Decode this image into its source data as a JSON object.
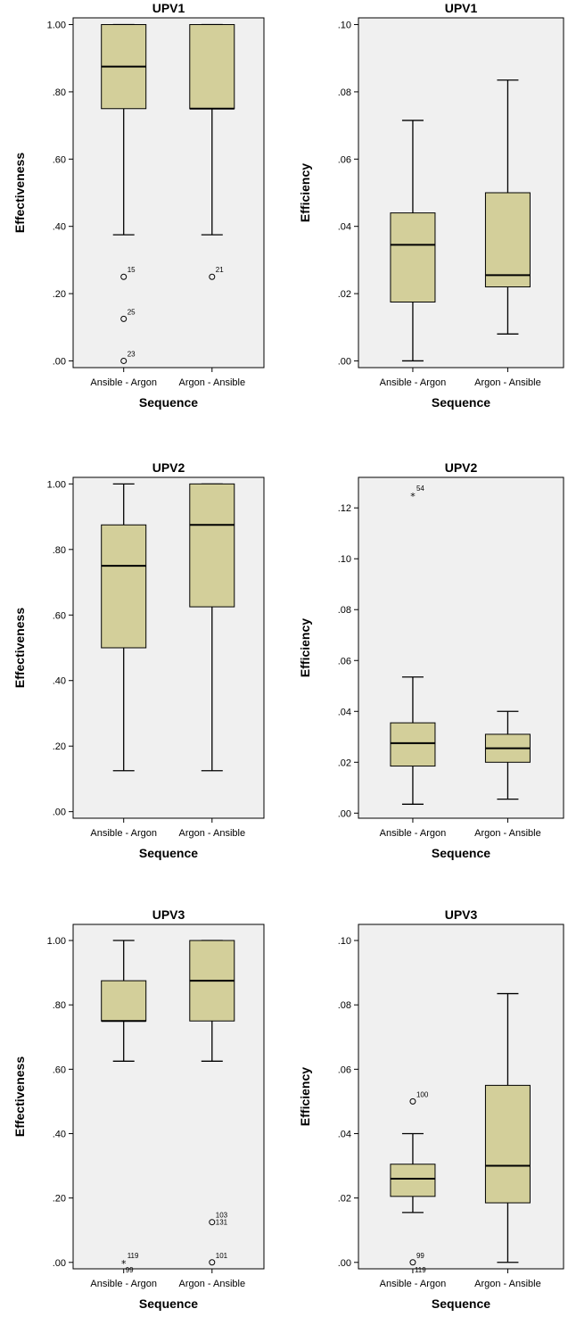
{
  "colors": {
    "box_fill": "#d3cf9a",
    "plot_bg": "#f0f0f0",
    "stroke": "#000000"
  },
  "chart_data": [
    {
      "type": "boxplot",
      "title": "UPV1",
      "xlabel": "Sequence",
      "ylabel": "Effectiveness",
      "categories": [
        "Ansible - Argon",
        "Argon - Ansible"
      ],
      "ylim": [
        -0.02,
        1.02
      ],
      "yticks": [
        0,
        0.2,
        0.4,
        0.6,
        0.8,
        1.0
      ],
      "ytick_labels": [
        ".00",
        ".20",
        ".40",
        ".60",
        ".80",
        "1.00"
      ],
      "grid": false,
      "boxes": [
        {
          "whisker_low": 0.375,
          "q1": 0.75,
          "median": 0.875,
          "q3": 1.0,
          "whisker_high": 1.0,
          "outliers": [
            {
              "value": 0.25,
              "label": "15",
              "marker": "circle"
            },
            {
              "value": 0.125,
              "label": "25",
              "marker": "circle"
            },
            {
              "value": 0.0,
              "label": "23",
              "marker": "circle"
            }
          ]
        },
        {
          "whisker_low": 0.375,
          "q1": 0.75,
          "median": 0.75,
          "q3": 1.0,
          "whisker_high": 1.0,
          "outliers": [
            {
              "value": 0.25,
              "label": "21",
              "marker": "circle"
            }
          ]
        }
      ]
    },
    {
      "type": "boxplot",
      "title": "UPV1",
      "xlabel": "Sequence",
      "ylabel": "Efficiency",
      "categories": [
        "Ansible - Argon",
        "Argon - Ansible"
      ],
      "ylim": [
        -0.002,
        0.102
      ],
      "yticks": [
        0,
        0.02,
        0.04,
        0.06,
        0.08,
        0.1
      ],
      "ytick_labels": [
        ".00",
        ".02",
        ".04",
        ".06",
        ".08",
        ".10"
      ],
      "grid": false,
      "boxes": [
        {
          "whisker_low": 0.0,
          "q1": 0.0175,
          "median": 0.0345,
          "q3": 0.044,
          "whisker_high": 0.0715,
          "outliers": []
        },
        {
          "whisker_low": 0.008,
          "q1": 0.022,
          "median": 0.0255,
          "q3": 0.05,
          "whisker_high": 0.0835,
          "outliers": []
        }
      ]
    },
    {
      "type": "boxplot",
      "title": "UPV2",
      "xlabel": "Sequence",
      "ylabel": "Effectiveness",
      "categories": [
        "Ansible - Argon",
        "Argon - Ansible"
      ],
      "ylim": [
        -0.02,
        1.02
      ],
      "yticks": [
        0,
        0.2,
        0.4,
        0.6,
        0.8,
        1.0
      ],
      "ytick_labels": [
        ".00",
        ".20",
        ".40",
        ".60",
        ".80",
        "1.00"
      ],
      "grid": false,
      "boxes": [
        {
          "whisker_low": 0.125,
          "q1": 0.5,
          "median": 0.75,
          "q3": 0.875,
          "whisker_high": 1.0,
          "outliers": []
        },
        {
          "whisker_low": 0.125,
          "q1": 0.625,
          "median": 0.875,
          "q3": 1.0,
          "whisker_high": 1.0,
          "outliers": []
        }
      ]
    },
    {
      "type": "boxplot",
      "title": "UPV2",
      "xlabel": "Sequence",
      "ylabel": "Efficiency",
      "categories": [
        "Ansible - Argon",
        "Argon - Ansible"
      ],
      "ylim": [
        -0.002,
        0.132
      ],
      "yticks": [
        0,
        0.02,
        0.04,
        0.06,
        0.08,
        0.1,
        0.12
      ],
      "ytick_labels": [
        ".00",
        ".02",
        ".04",
        ".06",
        ".08",
        ".10",
        ".12"
      ],
      "grid": false,
      "boxes": [
        {
          "whisker_low": 0.0035,
          "q1": 0.0185,
          "median": 0.0275,
          "q3": 0.0355,
          "whisker_high": 0.0535,
          "outliers": [
            {
              "value": 0.125,
              "label": "54",
              "marker": "star"
            }
          ]
        },
        {
          "whisker_low": 0.0055,
          "q1": 0.02,
          "median": 0.0255,
          "q3": 0.031,
          "whisker_high": 0.04,
          "outliers": []
        }
      ]
    },
    {
      "type": "boxplot",
      "title": "UPV3",
      "xlabel": "Sequence",
      "ylabel": "Effectiveness",
      "categories": [
        "Ansible - Argon",
        "Argon - Ansible"
      ],
      "ylim": [
        -0.02,
        1.05
      ],
      "yticks": [
        0,
        0.2,
        0.4,
        0.6,
        0.8,
        1.0
      ],
      "ytick_labels": [
        ".00",
        ".20",
        ".40",
        ".60",
        ".80",
        "1.00"
      ],
      "grid": false,
      "boxes": [
        {
          "whisker_low": 0.625,
          "q1": 0.75,
          "median": 0.75,
          "q3": 0.875,
          "whisker_high": 1.0,
          "outliers": [
            {
              "value": 0.0,
              "label": "119",
              "marker": "star",
              "label_pos": "above"
            },
            {
              "value": 0.0,
              "label": "99",
              "marker": "none",
              "label_pos": "below"
            }
          ]
        },
        {
          "whisker_low": 0.625,
          "q1": 0.75,
          "median": 0.875,
          "q3": 1.0,
          "whisker_high": 1.0,
          "outliers": [
            {
              "value": 0.125,
              "label": "103",
              "marker": "circle",
              "label_pos": "above"
            },
            {
              "value": 0.125,
              "label": "131",
              "marker": "none",
              "label_pos": "right"
            },
            {
              "value": 0.0,
              "label": "101",
              "marker": "circle",
              "label_pos": "above"
            }
          ]
        }
      ]
    },
    {
      "type": "boxplot",
      "title": "UPV3",
      "xlabel": "Sequence",
      "ylabel": "Efficiency",
      "categories": [
        "Ansible - Argon",
        "Argon - Ansible"
      ],
      "ylim": [
        -0.002,
        0.105
      ],
      "yticks": [
        0,
        0.02,
        0.04,
        0.06,
        0.08,
        0.1
      ],
      "ytick_labels": [
        ".00",
        ".02",
        ".04",
        ".06",
        ".08",
        ".10"
      ],
      "grid": false,
      "boxes": [
        {
          "whisker_low": 0.0155,
          "q1": 0.0205,
          "median": 0.026,
          "q3": 0.0305,
          "whisker_high": 0.04,
          "outliers": [
            {
              "value": 0.05,
              "label": "100",
              "marker": "circle",
              "label_pos": "above"
            },
            {
              "value": 0.0,
              "label": "99",
              "marker": "circle",
              "label_pos": "above"
            },
            {
              "value": 0.0,
              "label": "119",
              "marker": "none",
              "label_pos": "below"
            }
          ]
        },
        {
          "whisker_low": 0.0,
          "q1": 0.0185,
          "median": 0.03,
          "q3": 0.055,
          "whisker_high": 0.0835,
          "outliers": []
        }
      ]
    }
  ]
}
